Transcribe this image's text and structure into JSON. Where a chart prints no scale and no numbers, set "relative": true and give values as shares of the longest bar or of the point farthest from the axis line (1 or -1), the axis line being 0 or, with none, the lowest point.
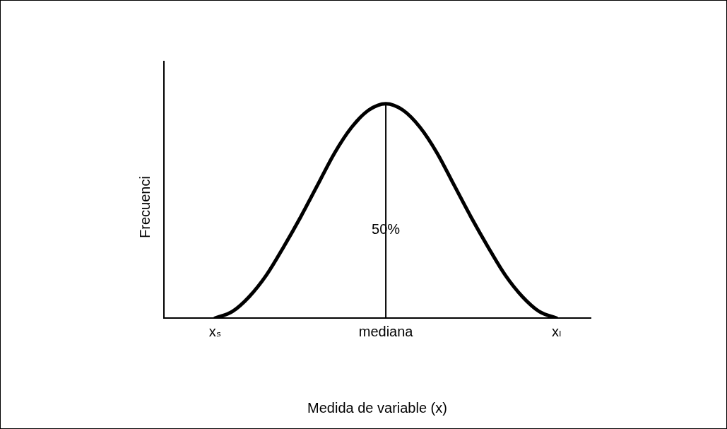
{
  "chart_data": {
    "type": "line",
    "relative": true,
    "xlabel": "Medida de variable (x)",
    "ylabel": "Frecuenci",
    "categories": [
      null,
      null,
      null,
      "xₛ",
      null,
      null,
      null,
      null,
      null,
      null,
      null,
      null,
      null,
      "mediana",
      null,
      null,
      null,
      null,
      null,
      null,
      null,
      null,
      null,
      "xₗ",
      null,
      null
    ],
    "series": [
      {
        "color": "#000000",
        "values": [
          null,
          null,
          null,
          0,
          0.03,
          0.1,
          0.2,
          0.33,
          0.47,
          0.62,
          0.77,
          0.89,
          0.97,
          1,
          0.97,
          0.89,
          0.77,
          0.62,
          0.47,
          0.33,
          0.2,
          0.1,
          0.03,
          0,
          null,
          null
        ]
      }
    ],
    "ref_lines": [
      {
        "axis": "x",
        "value": "mediana",
        "label": "50%",
        "color": "#000000"
      }
    ],
    "marker": "none",
    "line_style": "solid",
    "grid": false,
    "legend": false
  }
}
